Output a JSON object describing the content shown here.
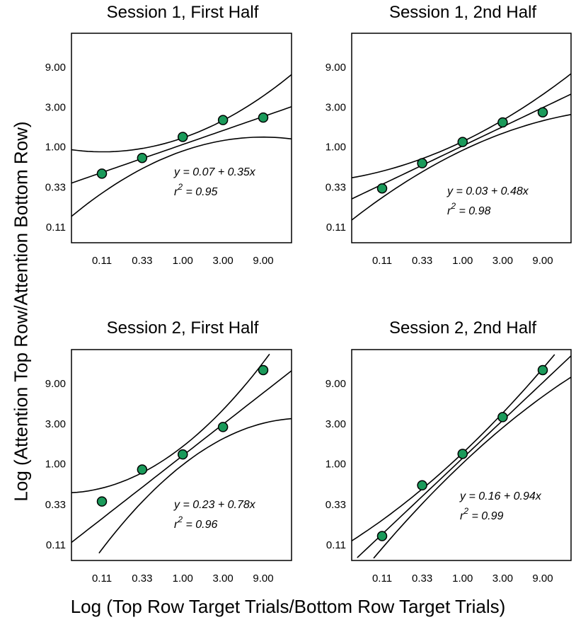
{
  "figure": {
    "y_axis_label": "Log (Attention Top Row/Attention Bottom Row)",
    "x_axis_label": "Log (Top Row Target Trials/Bottom Row Target Trials)"
  },
  "colors": {
    "point_fill": "#1a9a5a",
    "point_stroke": "#000000",
    "line": "#000000"
  },
  "chart_data": [
    {
      "type": "scatter",
      "title": "Session 1, First Half",
      "x_ticks": [
        "0.11",
        "0.33",
        "1.00",
        "3.00",
        "9.00"
      ],
      "y_ticks": [
        "0.11",
        "0.33",
        "1.00",
        "3.00",
        "9.00"
      ],
      "scale": "log",
      "x": [
        0.11,
        0.33,
        1.0,
        3.0,
        9.0
      ],
      "y": [
        0.48,
        0.74,
        1.32,
        2.1,
        2.25
      ],
      "equation": "y = 0.07 + 0.35x",
      "r2_label": "r",
      "r2_exp": "2",
      "r2_value": " = 0.95",
      "fit": {
        "intercept": 0.07,
        "slope": 0.35
      },
      "confidence_band": true
    },
    {
      "type": "scatter",
      "title": "Session 1, 2nd Half",
      "x_ticks": [
        "0.11",
        "0.33",
        "1.00",
        "3.00",
        "9.00"
      ],
      "y_ticks": [
        "0.11",
        "0.33",
        "1.00",
        "3.00",
        "9.00"
      ],
      "scale": "log",
      "x": [
        0.11,
        0.33,
        1.0,
        3.0,
        9.0
      ],
      "y": [
        0.32,
        0.64,
        1.15,
        1.97,
        2.6
      ],
      "equation": "y = 0.03 + 0.48x",
      "r2_label": "r",
      "r2_exp": "2",
      "r2_value": " = 0.98",
      "fit": {
        "intercept": 0.03,
        "slope": 0.48
      },
      "confidence_band": true
    },
    {
      "type": "scatter",
      "title": "Session 2, First Half",
      "x_ticks": [
        "0.11",
        "0.33",
        "1.00",
        "3.00",
        "9.00"
      ],
      "y_ticks": [
        "0.11",
        "0.33",
        "1.00",
        "3.00",
        "9.00"
      ],
      "scale": "log",
      "x": [
        0.11,
        0.33,
        1.0,
        3.0,
        9.0
      ],
      "y": [
        0.36,
        0.86,
        1.3,
        2.75,
        13.0
      ],
      "equation": "y = 0.23 + 0.78x",
      "r2_label": "r",
      "r2_exp": "2",
      "r2_value": " = 0.96",
      "fit": {
        "intercept": 0.23,
        "slope": 0.78
      },
      "confidence_band": true
    },
    {
      "type": "scatter",
      "title": "Session 2, 2nd Half",
      "x_ticks": [
        "0.11",
        "0.33",
        "1.00",
        "3.00",
        "9.00"
      ],
      "y_ticks": [
        "0.11",
        "0.33",
        "1.00",
        "3.00",
        "9.00"
      ],
      "scale": "log",
      "x": [
        0.11,
        0.33,
        1.0,
        3.0,
        9.0
      ],
      "y": [
        0.14,
        0.56,
        1.32,
        3.6,
        13.0
      ],
      "equation": "y = 0.16 + 0.94x",
      "r2_label": "r",
      "r2_exp": "2",
      "r2_value": " = 0.99",
      "fit": {
        "intercept": 0.16,
        "slope": 0.94
      },
      "confidence_band": true
    }
  ]
}
